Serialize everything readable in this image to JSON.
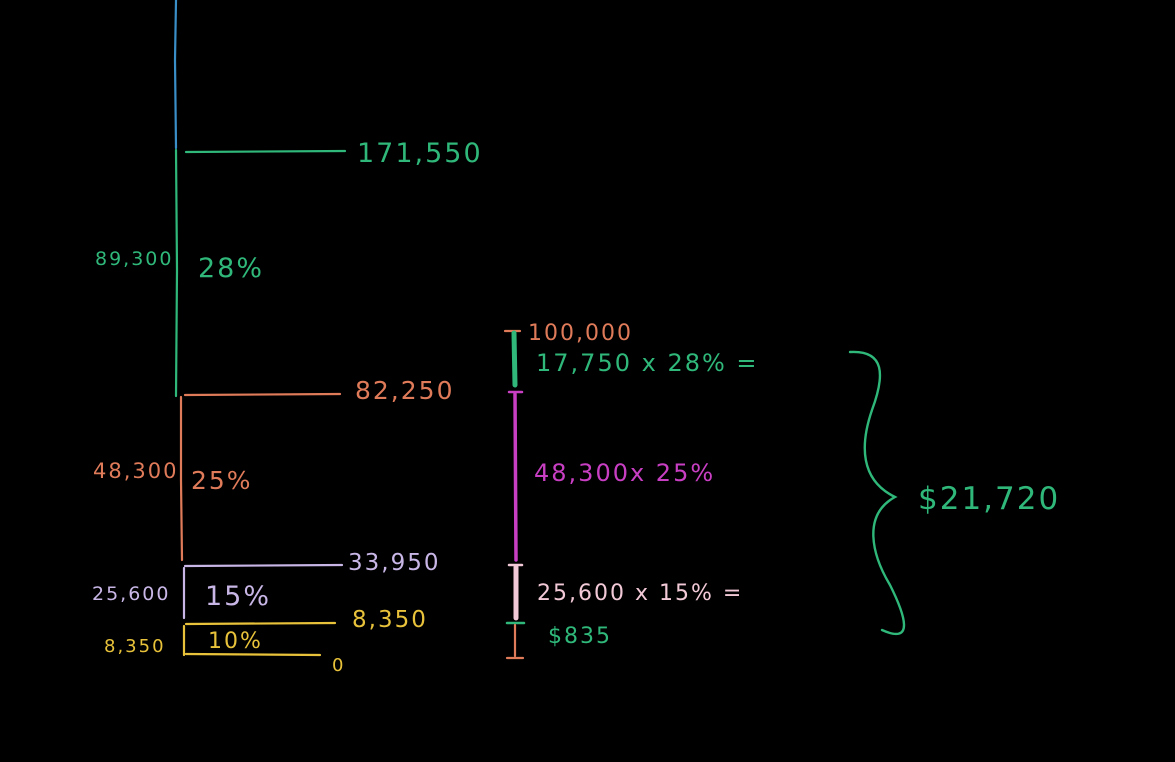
{
  "colors": {
    "background": "#000000",
    "blue": "#3a8fc9",
    "green": "#2fb87a",
    "orange": "#e07b5a",
    "lavender": "#c8b6e6",
    "yellow": "#e8c23a",
    "magenta": "#c93fc4",
    "pink": "#f2c9d6"
  },
  "brackets": {
    "top_value": "171,550",
    "b28_width": "89,300",
    "b28_rate": "28%",
    "b25_top": "82,250",
    "b25_width": "48,300",
    "b25_rate": "25%",
    "b15_top": "33,950",
    "b15_width": "25,600",
    "b15_rate": "15%",
    "b10_top": "8,350",
    "b10_width": "8,350",
    "b10_rate": "10%",
    "zero": "0"
  },
  "calc": {
    "income": "100,000",
    "line28": "17,750 x 28% =",
    "line25": "48,300x 25%",
    "line15": "25,600 x 15% =",
    "line10": "$835",
    "total": "$21,720"
  }
}
